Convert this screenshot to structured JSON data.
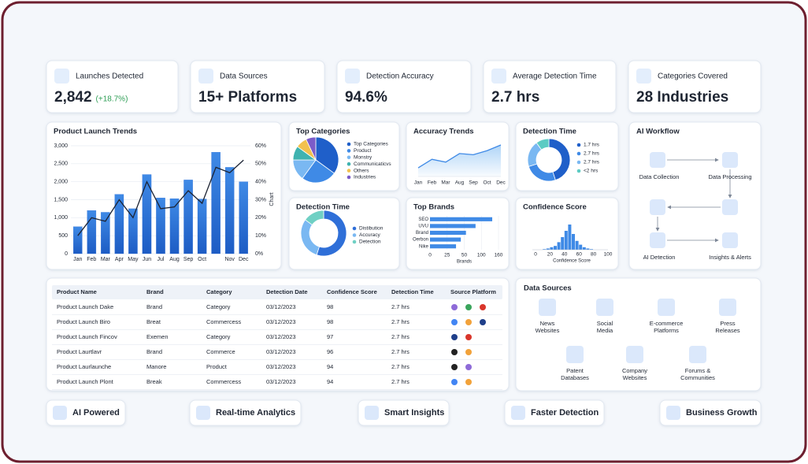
{
  "kpis": [
    {
      "label": "Launches Detected",
      "value": "2,842",
      "delta": "(+18.7%)"
    },
    {
      "label": "Data Sources",
      "value": "15+ Platforms"
    },
    {
      "label": "Detection Accuracy",
      "value": "94.6%"
    },
    {
      "label": "Average Detection Time",
      "value": "2.7 hrs"
    },
    {
      "label": "Categories Covered",
      "value": "28 Industries"
    }
  ],
  "chart_data": [
    {
      "type": "bar",
      "title": "Product Launch Trends",
      "y2_label": "Chart",
      "categories": [
        "Jan",
        "Feb",
        "Mar",
        "Apr",
        "May",
        "Jun",
        "Jul",
        "Aug",
        "Sep",
        "Oct",
        null,
        "Nov",
        "Dec"
      ],
      "series": [
        {
          "color": "#2f6fd8",
          "values": [
            750,
            1200,
            1150,
            1650,
            1250,
            2200,
            1550,
            1530,
            2050,
            1520,
            2820,
            2400,
            2000
          ]
        },
        {
          "color": "#1c2333",
          "axis": "y2",
          "values": [
            10,
            20,
            18,
            30,
            20,
            40,
            25,
            26,
            35,
            28,
            48,
            45,
            52
          ]
        }
      ],
      "ylim": [
        0,
        3000
      ],
      "yticks": [
        0,
        500,
        {
          "value": 1000,
          "label": "1,000"
        },
        {
          "value": 1500,
          "label": "1,500"
        },
        {
          "value": 2000,
          "label": "2,000"
        },
        {
          "value": 2500,
          "label": "2,500"
        },
        {
          "value": 3000,
          "label": "3,000"
        }
      ],
      "y2lim": [
        0,
        60
      ],
      "y2ticks": [
        {
          "value": 0,
          "label": "0%"
        },
        {
          "value": 10,
          "label": "10%"
        },
        {
          "value": 20,
          "label": "20%"
        },
        {
          "value": 30,
          "label": "30%"
        },
        {
          "value": 40,
          "label": "40%"
        },
        {
          "value": 50,
          "label": "50%"
        },
        {
          "value": 60,
          "label": "60%"
        }
      ],
      "grid": true
    },
    {
      "type": "pie",
      "title": "Top Categories",
      "categories": [
        "Top Categories",
        "Product",
        "Monstry",
        "Communicaticvs",
        "Others",
        "Industries"
      ],
      "values": [
        35,
        25,
        15,
        10,
        8,
        7
      ],
      "colors": [
        "#1f5fc9",
        "#3f8ae6",
        "#7ab8f2",
        "#3fb3b0",
        "#f2c14e",
        "#7b5cc9"
      ]
    },
    {
      "type": "line",
      "title": "Accuracy Trends",
      "categories": [
        "Jan",
        "Feb",
        "Mar",
        "Aug",
        "Sep",
        "Oct",
        "Dec"
      ],
      "values": [
        15,
        30,
        25,
        40,
        38,
        45,
        55
      ],
      "color": "#3f8ae6"
    },
    {
      "type": "donut",
      "title": "Detection Time",
      "categories": [
        "1.7 hrs",
        "2.7 hrs",
        "2.7 hrs",
        "<2 hrs"
      ],
      "values": [
        45,
        25,
        20,
        10
      ],
      "colors": [
        "#1f5fc9",
        "#3f8ae6",
        "#7ab8f2",
        "#5ccbc3"
      ]
    },
    {
      "type": "donut",
      "title": "Detection Time",
      "categories": [
        "Distibution",
        "Accuracy",
        "Detection"
      ],
      "values": [
        55,
        30,
        15
      ],
      "colors": [
        "#2f6fd8",
        "#7ab8f2",
        "#6fd0c4"
      ]
    },
    {
      "type": "barh",
      "title": "Top Brands",
      "categories": [
        "SEO",
        "UVU",
        "Brand",
        "Oerbon",
        "Nike"
      ],
      "values": [
        138,
        83,
        55,
        45,
        38
      ],
      "color": "#3f8ae6",
      "xlim": [
        0,
        160
      ],
      "xticks": [
        0,
        25,
        50,
        100,
        160
      ],
      "xlabel": "Brands"
    },
    {
      "type": "histogram",
      "title": "Confidence Score",
      "bins": [
        10,
        15,
        20,
        25,
        30,
        35,
        40,
        45,
        50,
        55,
        60,
        65,
        70,
        75,
        80
      ],
      "values": [
        1,
        2,
        4,
        6,
        12,
        20,
        30,
        40,
        25,
        14,
        8,
        4,
        2,
        1
      ],
      "color": "#3f8ae6",
      "xlim": [
        0,
        100
      ],
      "xticks": [
        0,
        20,
        40,
        60,
        80,
        100
      ],
      "xlabel": "Confidence Score"
    }
  ],
  "workflow": {
    "title": "AI Workflow",
    "nodes": [
      "Data Collection",
      "Data Processing",
      "AI Detection",
      "Insights & Alerts"
    ]
  },
  "table": {
    "headers": [
      "Product Name",
      "Brand",
      "Category",
      "Detection Date",
      "Confidence Score",
      "Detection Time",
      "Source Platform"
    ],
    "rows": [
      [
        "Product Launch Dake",
        "Brand",
        "Category",
        "03/12/2023",
        98,
        "2.7 hrs"
      ],
      [
        "Product Launch Biro",
        "Breat",
        "Commercess",
        "03/12/2023",
        98,
        "2.7 hrs"
      ],
      [
        "Product Launch Fincov",
        "Exemen",
        "Category",
        "03/12/2023",
        97,
        "2.7 hrs"
      ],
      [
        "Product Laurtlavr",
        "Brand",
        "Commerce",
        "03/12/2023",
        96,
        "2.7 hrs"
      ],
      [
        "Product Laurlaunche",
        "Manore",
        "Product",
        "03/12/2023",
        94,
        "2.7 hrs"
      ],
      [
        "Product Launch Plont",
        "Break",
        "Commercess",
        "03/12/2023",
        94,
        "2.7 hrs"
      ]
    ]
  },
  "data_sources": {
    "title": "Data Sources",
    "items": [
      [
        "News",
        "Websites"
      ],
      [
        "Social",
        "Media"
      ],
      [
        "E-commerce",
        "Platforms"
      ],
      [
        "Press",
        "Releases"
      ],
      [
        "Patent",
        "Databases"
      ],
      [
        "Company",
        "Websites"
      ],
      [
        "Forums &",
        "Communities"
      ]
    ]
  },
  "features": [
    "AI Powered",
    "Real-time Analytics",
    "Smart Insights",
    "Faster Detection",
    "Business Growth"
  ]
}
